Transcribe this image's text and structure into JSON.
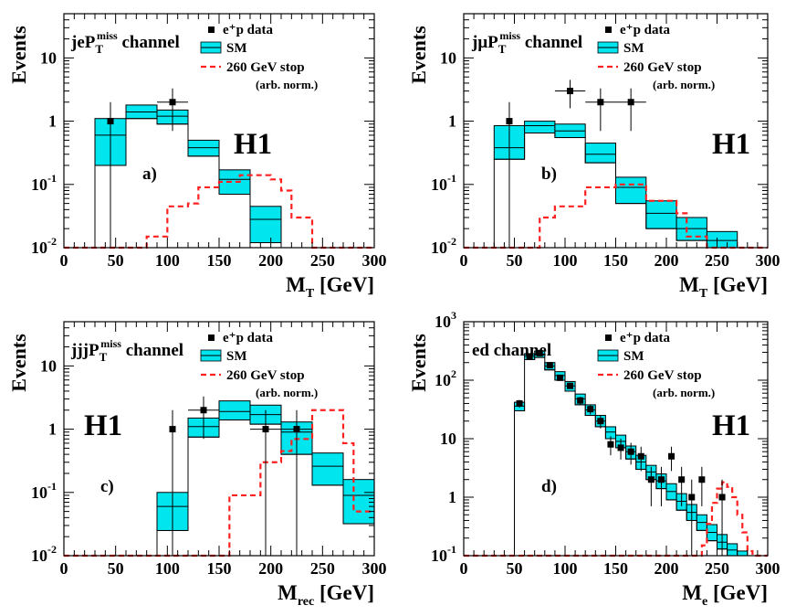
{
  "colors": {
    "sm_fill": "#00e5ee",
    "stop_line": "#ff2020",
    "data": "#000000"
  },
  "legend": {
    "data": "e⁺p data",
    "sm": "SM",
    "stop": "260 GeV stop",
    "stop_note": "(arb. norm.)"
  },
  "ylabel": "Events",
  "experiment": "H1",
  "chart_data": [
    {
      "id": "a",
      "type": "histogram",
      "panel_label": "a)",
      "channel_prefix": "jeP",
      "channel_sub": "T",
      "channel_sup": "miss",
      "channel_suffix": " channel",
      "xlabel_main": "M",
      "xlabel_sub": "T",
      "xlabel_unit": " [GeV]",
      "xlim": [
        0,
        300
      ],
      "ylim": [
        0.01,
        50
      ],
      "yscale": "log",
      "xticks": [
        0,
        50,
        100,
        150,
        200,
        250,
        300
      ],
      "yticks": [
        {
          "base": "10",
          "exp": "-2"
        },
        {
          "base": "10",
          "exp": "-1"
        },
        {
          "base": "1",
          "exp": ""
        },
        {
          "base": "10",
          "exp": ""
        }
      ],
      "ytick_values": [
        0.01,
        0.1,
        1,
        10
      ],
      "sm": [
        {
          "x": [
            30,
            60
          ],
          "lo": 0.2,
          "mid": 0.6,
          "hi": 1.1
        },
        {
          "x": [
            60,
            90
          ],
          "lo": 1.1,
          "mid": 1.4,
          "hi": 1.8
        },
        {
          "x": [
            90,
            120
          ],
          "lo": 0.9,
          "mid": 1.2,
          "hi": 1.5
        },
        {
          "x": [
            120,
            150
          ],
          "lo": 0.28,
          "mid": 0.38,
          "hi": 0.5
        },
        {
          "x": [
            150,
            180
          ],
          "lo": 0.07,
          "mid": 0.12,
          "hi": 0.17
        },
        {
          "x": [
            180,
            210
          ],
          "lo": 0.012,
          "mid": 0.028,
          "hi": 0.045
        }
      ],
      "stop": [
        [
          0,
          0.01
        ],
        [
          80,
          0.01
        ],
        [
          80,
          0.015
        ],
        [
          100,
          0.015
        ],
        [
          100,
          0.045
        ],
        [
          120,
          0.045
        ],
        [
          120,
          0.05
        ],
        [
          130,
          0.05
        ],
        [
          130,
          0.09
        ],
        [
          150,
          0.09
        ],
        [
          150,
          0.11
        ],
        [
          170,
          0.11
        ],
        [
          170,
          0.14
        ],
        [
          200,
          0.14
        ],
        [
          200,
          0.12
        ],
        [
          210,
          0.12
        ],
        [
          210,
          0.08
        ],
        [
          220,
          0.08
        ],
        [
          220,
          0.03
        ],
        [
          240,
          0.03
        ],
        [
          240,
          0.01
        ],
        [
          300,
          0.01
        ]
      ],
      "data_points": [
        {
          "x": 45,
          "xerr": 0,
          "y": 1,
          "ylo": 0.01,
          "yhi": 2.0
        },
        {
          "x": 105,
          "xerr": 15,
          "y": 2,
          "ylo": 0.7,
          "yhi": 3.3
        }
      ]
    },
    {
      "id": "b",
      "type": "histogram",
      "panel_label": "b)",
      "channel_prefix": "jμP",
      "channel_sub": "T",
      "channel_sup": "miss",
      "channel_suffix": " channel",
      "xlabel_main": "M",
      "xlabel_sub": "T",
      "xlabel_unit": " [GeV]",
      "xlim": [
        0,
        300
      ],
      "ylim": [
        0.01,
        50
      ],
      "yscale": "log",
      "xticks": [
        0,
        50,
        100,
        150,
        200,
        250,
        300
      ],
      "yticks": [
        {
          "base": "10",
          "exp": "-2"
        },
        {
          "base": "10",
          "exp": "-1"
        },
        {
          "base": "1",
          "exp": ""
        },
        {
          "base": "10",
          "exp": ""
        }
      ],
      "ytick_values": [
        0.01,
        0.1,
        1,
        10
      ],
      "sm": [
        {
          "x": [
            30,
            60
          ],
          "lo": 0.25,
          "mid": 0.38,
          "hi": 0.85
        },
        {
          "x": [
            60,
            90
          ],
          "lo": 0.65,
          "mid": 0.85,
          "hi": 1.0
        },
        {
          "x": [
            90,
            120
          ],
          "lo": 0.55,
          "mid": 0.7,
          "hi": 0.9
        },
        {
          "x": [
            120,
            150
          ],
          "lo": 0.22,
          "mid": 0.3,
          "hi": 0.45
        },
        {
          "x": [
            150,
            180
          ],
          "lo": 0.05,
          "mid": 0.09,
          "hi": 0.13
        },
        {
          "x": [
            180,
            210
          ],
          "lo": 0.02,
          "mid": 0.035,
          "hi": 0.055
        },
        {
          "x": [
            210,
            240
          ],
          "lo": 0.013,
          "mid": 0.02,
          "hi": 0.03
        },
        {
          "x": [
            240,
            270
          ],
          "lo": 0.01,
          "mid": 0.013,
          "hi": 0.018
        }
      ],
      "stop": [
        [
          0,
          0.01
        ],
        [
          75,
          0.01
        ],
        [
          75,
          0.03
        ],
        [
          90,
          0.03
        ],
        [
          90,
          0.045
        ],
        [
          120,
          0.045
        ],
        [
          120,
          0.09
        ],
        [
          150,
          0.09
        ],
        [
          150,
          0.1
        ],
        [
          180,
          0.1
        ],
        [
          180,
          0.055
        ],
        [
          210,
          0.055
        ],
        [
          210,
          0.035
        ],
        [
          220,
          0.035
        ],
        [
          220,
          0.015
        ],
        [
          240,
          0.015
        ],
        [
          240,
          0.01
        ],
        [
          300,
          0.01
        ]
      ],
      "data_points": [
        {
          "x": 45,
          "xerr": 0,
          "y": 1,
          "ylo": 0.01,
          "yhi": 2.0
        },
        {
          "x": 105,
          "xerr": 15,
          "y": 3,
          "ylo": 1.6,
          "yhi": 4.5
        },
        {
          "x": 135,
          "xerr": 15,
          "y": 2,
          "ylo": 0.7,
          "yhi": 3.3
        },
        {
          "x": 165,
          "xerr": 15,
          "y": 2,
          "ylo": 0.7,
          "yhi": 3.3
        }
      ]
    },
    {
      "id": "c",
      "type": "histogram",
      "panel_label": "c)",
      "channel_prefix": "jjjP",
      "channel_sub": "T",
      "channel_sup": "miss",
      "channel_suffix": " channel",
      "xlabel_main": "M",
      "xlabel_sub": "rec",
      "xlabel_unit": " [GeV]",
      "xlim": [
        0,
        300
      ],
      "ylim": [
        0.01,
        50
      ],
      "yscale": "log",
      "xticks": [
        0,
        50,
        100,
        150,
        200,
        250,
        300
      ],
      "yticks": [
        {
          "base": "10",
          "exp": "-2"
        },
        {
          "base": "10",
          "exp": "-1"
        },
        {
          "base": "1",
          "exp": ""
        },
        {
          "base": "10",
          "exp": ""
        }
      ],
      "ytick_values": [
        0.01,
        0.1,
        1,
        10
      ],
      "sm": [
        {
          "x": [
            90,
            120
          ],
          "lo": 0.025,
          "mid": 0.06,
          "hi": 0.1
        },
        {
          "x": [
            120,
            150
          ],
          "lo": 0.75,
          "mid": 1.1,
          "hi": 1.5
        },
        {
          "x": [
            150,
            180
          ],
          "lo": 1.4,
          "mid": 1.9,
          "hi": 2.8
        },
        {
          "x": [
            180,
            210
          ],
          "lo": 1.2,
          "mid": 1.7,
          "hi": 2.4
        },
        {
          "x": [
            210,
            240
          ],
          "lo": 0.4,
          "mid": 0.9,
          "hi": 1.3
        },
        {
          "x": [
            240,
            270
          ],
          "lo": 0.13,
          "mid": 0.26,
          "hi": 0.42
        },
        {
          "x": [
            270,
            300
          ],
          "lo": 0.032,
          "mid": 0.09,
          "hi": 0.16
        }
      ],
      "stop": [
        [
          0,
          0.01
        ],
        [
          160,
          0.01
        ],
        [
          160,
          0.09
        ],
        [
          190,
          0.09
        ],
        [
          190,
          0.3
        ],
        [
          210,
          0.3
        ],
        [
          210,
          0.45
        ],
        [
          220,
          0.45
        ],
        [
          220,
          0.7
        ],
        [
          240,
          0.7
        ],
        [
          240,
          2.0
        ],
        [
          270,
          2.0
        ],
        [
          270,
          0.6
        ],
        [
          280,
          0.6
        ],
        [
          280,
          0.05
        ],
        [
          300,
          0.05
        ]
      ],
      "data_points": [
        {
          "x": 105,
          "xerr": 0,
          "y": 1,
          "ylo": 0.01,
          "yhi": 2.0
        },
        {
          "x": 135,
          "xerr": 15,
          "y": 2,
          "ylo": 0.7,
          "yhi": 3.3
        },
        {
          "x": 195,
          "xerr": 15,
          "y": 1,
          "ylo": 0.01,
          "yhi": 2.0
        },
        {
          "x": 225,
          "xerr": 15,
          "y": 1,
          "ylo": 0.01,
          "yhi": 2.0
        }
      ]
    },
    {
      "id": "d",
      "type": "histogram",
      "panel_label": "d)",
      "channel_prefix": "ed",
      "channel_sub": "",
      "channel_sup": "",
      "channel_suffix": " channel",
      "xlabel_main": "M",
      "xlabel_sub": "e",
      "xlabel_unit": " [GeV]",
      "xlim": [
        0,
        300
      ],
      "ylim": [
        0.1,
        1000
      ],
      "yscale": "log",
      "xticks": [
        0,
        50,
        100,
        150,
        200,
        250,
        300
      ],
      "yticks": [
        {
          "base": "10",
          "exp": "-1"
        },
        {
          "base": "1",
          "exp": ""
        },
        {
          "base": "10",
          "exp": ""
        },
        {
          "base": "10",
          "exp": "2"
        },
        {
          "base": "10",
          "exp": "3"
        }
      ],
      "ytick_values": [
        0.1,
        1,
        10,
        100,
        1000
      ],
      "sm": [
        {
          "x": [
            50,
            60
          ],
          "lo": 30,
          "mid": 36,
          "hi": 42
        },
        {
          "x": [
            60,
            70
          ],
          "lo": 225,
          "mid": 255,
          "hi": 285
        },
        {
          "x": [
            70,
            80
          ],
          "lo": 245,
          "mid": 280,
          "hi": 315
        },
        {
          "x": [
            80,
            90
          ],
          "lo": 150,
          "mid": 175,
          "hi": 200
        },
        {
          "x": [
            90,
            100
          ],
          "lo": 100,
          "mid": 120,
          "hi": 140
        },
        {
          "x": [
            100,
            110
          ],
          "lo": 65,
          "mid": 80,
          "hi": 95
        },
        {
          "x": [
            110,
            120
          ],
          "lo": 38,
          "mid": 48,
          "hi": 58
        },
        {
          "x": [
            120,
            130
          ],
          "lo": 25,
          "mid": 31,
          "hi": 38
        },
        {
          "x": [
            130,
            140
          ],
          "lo": 16,
          "mid": 20,
          "hi": 25
        },
        {
          "x": [
            140,
            150
          ],
          "lo": 10,
          "mid": 13,
          "hi": 16
        },
        {
          "x": [
            150,
            160
          ],
          "lo": 7,
          "mid": 9,
          "hi": 11.5
        },
        {
          "x": [
            160,
            170
          ],
          "lo": 4.5,
          "mid": 6,
          "hi": 7.5
        },
        {
          "x": [
            170,
            180
          ],
          "lo": 3,
          "mid": 4,
          "hi": 5.2
        },
        {
          "x": [
            180,
            190
          ],
          "lo": 2,
          "mid": 2.7,
          "hi": 3.5
        },
        {
          "x": [
            190,
            200
          ],
          "lo": 1.4,
          "mid": 1.9,
          "hi": 2.5
        },
        {
          "x": [
            200,
            210
          ],
          "lo": 0.9,
          "mid": 1.25,
          "hi": 1.7
        },
        {
          "x": [
            210,
            220
          ],
          "lo": 0.6,
          "mid": 0.85,
          "hi": 1.15
        },
        {
          "x": [
            220,
            230
          ],
          "lo": 0.4,
          "mid": 0.55,
          "hi": 0.75
        },
        {
          "x": [
            230,
            240
          ],
          "lo": 0.27,
          "mid": 0.37,
          "hi": 0.5
        },
        {
          "x": [
            240,
            250
          ],
          "lo": 0.18,
          "mid": 0.25,
          "hi": 0.34
        },
        {
          "x": [
            250,
            260
          ],
          "lo": 0.13,
          "mid": 0.17,
          "hi": 0.23
        },
        {
          "x": [
            260,
            270
          ],
          "lo": 0.1,
          "mid": 0.125,
          "hi": 0.16
        },
        {
          "x": [
            270,
            280
          ],
          "lo": 0.1,
          "mid": 0.1,
          "hi": 0.12
        }
      ],
      "stop": [
        [
          0,
          0.1
        ],
        [
          235,
          0.1
        ],
        [
          235,
          0.15
        ],
        [
          240,
          0.15
        ],
        [
          240,
          0.35
        ],
        [
          245,
          0.35
        ],
        [
          245,
          0.8
        ],
        [
          250,
          0.8
        ],
        [
          250,
          1.4
        ],
        [
          255,
          1.4
        ],
        [
          255,
          1.8
        ],
        [
          260,
          1.8
        ],
        [
          260,
          1.5
        ],
        [
          265,
          1.5
        ],
        [
          265,
          1.0
        ],
        [
          270,
          1.0
        ],
        [
          270,
          0.5
        ],
        [
          275,
          0.5
        ],
        [
          275,
          0.25
        ],
        [
          280,
          0.25
        ],
        [
          280,
          0.12
        ],
        [
          285,
          0.12
        ],
        [
          285,
          0.1
        ],
        [
          300,
          0.1
        ]
      ],
      "data_points": [
        {
          "x": 55,
          "xerr": 0,
          "y": 40,
          "ylo": 34,
          "yhi": 46
        },
        {
          "x": 65,
          "xerr": 0,
          "y": 250,
          "ylo": 235,
          "yhi": 265
        },
        {
          "x": 75,
          "xerr": 0,
          "y": 290,
          "ylo": 273,
          "yhi": 307
        },
        {
          "x": 85,
          "xerr": 0,
          "y": 180,
          "ylo": 167,
          "yhi": 193
        },
        {
          "x": 95,
          "xerr": 0,
          "y": 110,
          "ylo": 100,
          "yhi": 120
        },
        {
          "x": 105,
          "xerr": 0,
          "y": 80,
          "ylo": 71,
          "yhi": 89
        },
        {
          "x": 115,
          "xerr": 0,
          "y": 45,
          "ylo": 38,
          "yhi": 52
        },
        {
          "x": 125,
          "xerr": 0,
          "y": 32,
          "ylo": 26,
          "yhi": 38
        },
        {
          "x": 135,
          "xerr": 0,
          "y": 20,
          "ylo": 15,
          "yhi": 25
        },
        {
          "x": 145,
          "xerr": 0,
          "y": 8,
          "ylo": 5.2,
          "yhi": 11
        },
        {
          "x": 155,
          "xerr": 0,
          "y": 7,
          "ylo": 4.4,
          "yhi": 10
        },
        {
          "x": 165,
          "xerr": 0,
          "y": 6,
          "ylo": 3.6,
          "yhi": 8.5
        },
        {
          "x": 175,
          "xerr": 0,
          "y": 5,
          "ylo": 2.8,
          "yhi": 7.3
        },
        {
          "x": 185,
          "xerr": 0,
          "y": 2,
          "ylo": 0.7,
          "yhi": 3.3
        },
        {
          "x": 195,
          "xerr": 0,
          "y": 2,
          "ylo": 0.7,
          "yhi": 3.3
        },
        {
          "x": 205,
          "xerr": 0,
          "y": 5,
          "ylo": 2.8,
          "yhi": 7.3
        },
        {
          "x": 215,
          "xerr": 0,
          "y": 2,
          "ylo": 0.7,
          "yhi": 3.3
        },
        {
          "x": 225,
          "xerr": 0,
          "y": 1,
          "ylo": 0.1,
          "yhi": 2.0
        },
        {
          "x": 235,
          "xerr": 0,
          "y": 2,
          "ylo": 0.7,
          "yhi": 3.3
        },
        {
          "x": 255,
          "xerr": 0,
          "y": 1,
          "ylo": 0.1,
          "yhi": 2.0
        }
      ]
    }
  ]
}
